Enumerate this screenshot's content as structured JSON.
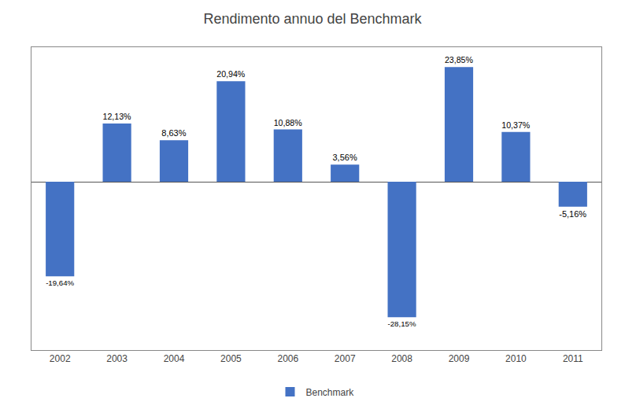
{
  "chart_data": {
    "type": "bar",
    "title": "Rendimento annuo del Benchmark",
    "categories": [
      "2002",
      "2003",
      "2004",
      "2005",
      "2006",
      "2007",
      "2008",
      "2009",
      "2010",
      "2011"
    ],
    "series": [
      {
        "name": "Benchmark",
        "color": "#4472C4",
        "values": [
          -19.64,
          12.13,
          8.63,
          20.94,
          10.88,
          3.56,
          -28.15,
          23.85,
          10.37,
          -5.16
        ],
        "value_labels": [
          "-19,64%",
          "12,13%",
          "8,63%",
          "20,94%",
          "10,88%",
          "3,56%",
          "-28,15%",
          "23,85%",
          "10,37%",
          "-5,16%"
        ]
      }
    ],
    "ylim": [
      -35,
      28
    ],
    "yticks": [],
    "grid": false,
    "legend": "bottom",
    "data_labels": true,
    "tick_labels": "x"
  }
}
